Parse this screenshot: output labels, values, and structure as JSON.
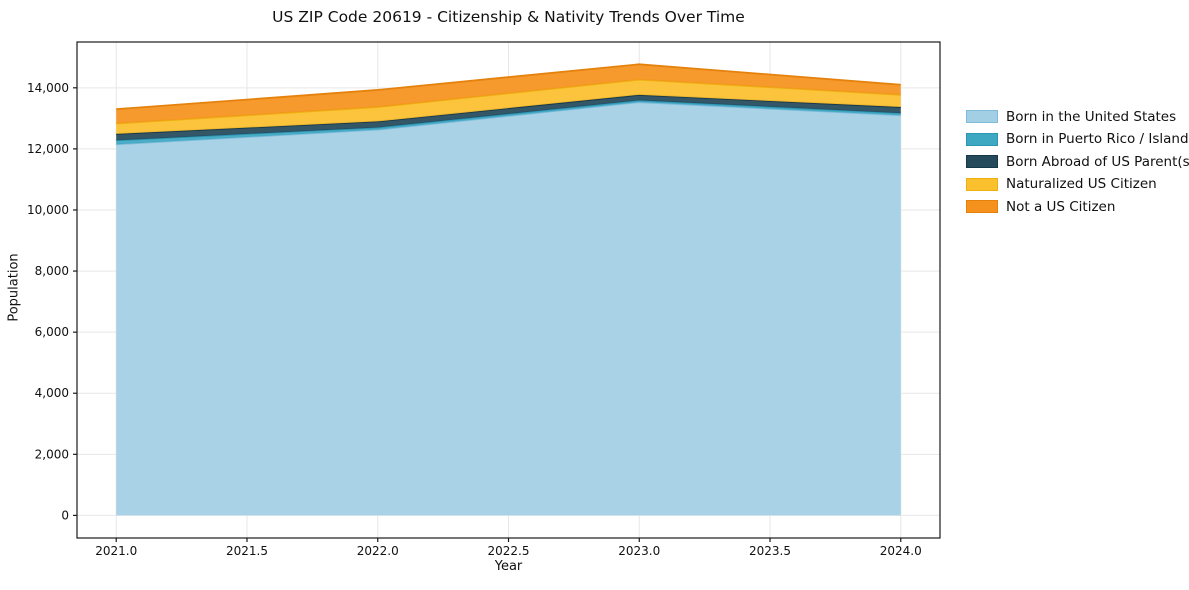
{
  "title": "US ZIP Code 20619 - Citizenship & Nativity Trends Over Time",
  "chart_data": {
    "type": "area",
    "stacked": true,
    "title": "US ZIP Code 20619 - Citizenship & Nativity Trends Over Time",
    "xlabel": "Year",
    "ylabel": "Population",
    "x": [
      2021,
      2022,
      2023,
      2024
    ],
    "series": [
      {
        "name": "Born in the United States",
        "color": "#a3cfe5",
        "edge": "#7fbcdb",
        "values": [
          12150,
          12630,
          13530,
          13100
        ]
      },
      {
        "name": "Born in Puerto Rico / Islands",
        "color": "#3ea8c2",
        "edge": "#2d96b3",
        "values": [
          130,
          70,
          60,
          70
        ]
      },
      {
        "name": "Born Abroad of US Parent(s)",
        "color": "#254a5c",
        "edge": "#17384a",
        "values": [
          210,
          200,
          180,
          200
        ]
      },
      {
        "name": "Naturalized US Citizen",
        "color": "#fbc02d",
        "edge": "#edb010",
        "values": [
          340,
          470,
          500,
          400
        ]
      },
      {
        "name": "Not a US Citizen",
        "color": "#f5921e",
        "edge": "#e5820d",
        "values": [
          470,
          560,
          500,
          330
        ]
      }
    ],
    "totals": [
      13300,
      13930,
      14770,
      14100
    ],
    "x_ticks": [
      {
        "v": 2021.0,
        "label": "2021.0"
      },
      {
        "v": 2021.5,
        "label": "2021.5"
      },
      {
        "v": 2022.0,
        "label": "2022.0"
      },
      {
        "v": 2022.5,
        "label": "2022.5"
      },
      {
        "v": 2023.0,
        "label": "2023.0"
      },
      {
        "v": 2023.5,
        "label": "2023.5"
      },
      {
        "v": 2024.0,
        "label": "2024.0"
      }
    ],
    "y_ticks": [
      {
        "v": 0,
        "label": "0"
      },
      {
        "v": 2000,
        "label": "2,000"
      },
      {
        "v": 4000,
        "label": "4,000"
      },
      {
        "v": 6000,
        "label": "6,000"
      },
      {
        "v": 8000,
        "label": "8,000"
      },
      {
        "v": 10000,
        "label": "10,000"
      },
      {
        "v": 12000,
        "label": "12,000"
      },
      {
        "v": 14000,
        "label": "14,000"
      }
    ],
    "xlim": [
      2020.85,
      2024.15
    ],
    "ylim": [
      -740,
      15500
    ],
    "grid": true,
    "legend_position": "right-outside",
    "colors": {
      "grid": "#e7e7e7",
      "spine": "#1a1a1a",
      "tick_text": "#111111",
      "background": "#ffffff"
    }
  }
}
